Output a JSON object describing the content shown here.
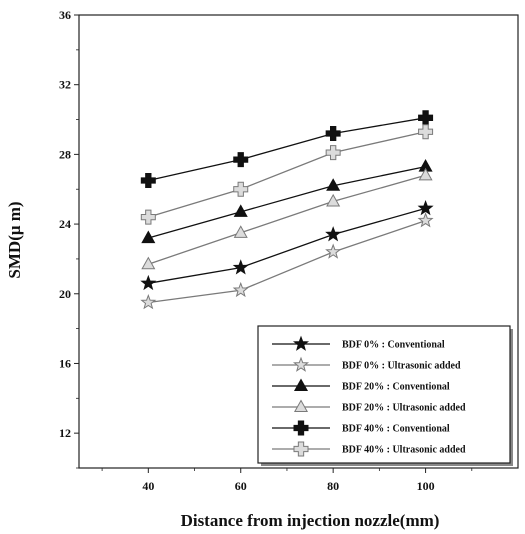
{
  "chart_data": {
    "type": "line",
    "title": "",
    "xlabel": "Distance from injection nozzle(mm)",
    "ylabel": "SMD(μ m)",
    "x": [
      40,
      60,
      80,
      100
    ],
    "xlim": [
      25,
      120
    ],
    "ylim": [
      10,
      36
    ],
    "xticks": [
      40,
      60,
      80,
      100
    ],
    "yticks": [
      12,
      16,
      20,
      24,
      28,
      32,
      36
    ],
    "grid": false,
    "legend_position": "bottom-right",
    "series": [
      {
        "name": "BDF  0% : Conventional",
        "values": [
          20.6,
          21.5,
          23.4,
          24.9
        ],
        "marker": "star-filled",
        "color": "#111111"
      },
      {
        "name": "BDF  0% : Ultrasonic added",
        "values": [
          19.5,
          20.2,
          22.4,
          24.2
        ],
        "marker": "star-open",
        "color": "#7a7a7a"
      },
      {
        "name": "BDF 20% : Conventional",
        "values": [
          23.2,
          24.7,
          26.2,
          27.3
        ],
        "marker": "triangle-filled",
        "color": "#111111"
      },
      {
        "name": "BDF 20% : Ultrasonic added",
        "values": [
          21.7,
          23.5,
          25.3,
          26.8
        ],
        "marker": "triangle-open",
        "color": "#7a7a7a"
      },
      {
        "name": "BDF 40% : Conventional",
        "values": [
          26.5,
          27.7,
          29.2,
          30.1
        ],
        "marker": "cross-filled",
        "color": "#111111"
      },
      {
        "name": "BDF 40% : Ultrasonic added",
        "values": [
          24.4,
          26.0,
          28.1,
          29.3
        ],
        "marker": "cross-open",
        "color": "#7a7a7a"
      }
    ]
  }
}
